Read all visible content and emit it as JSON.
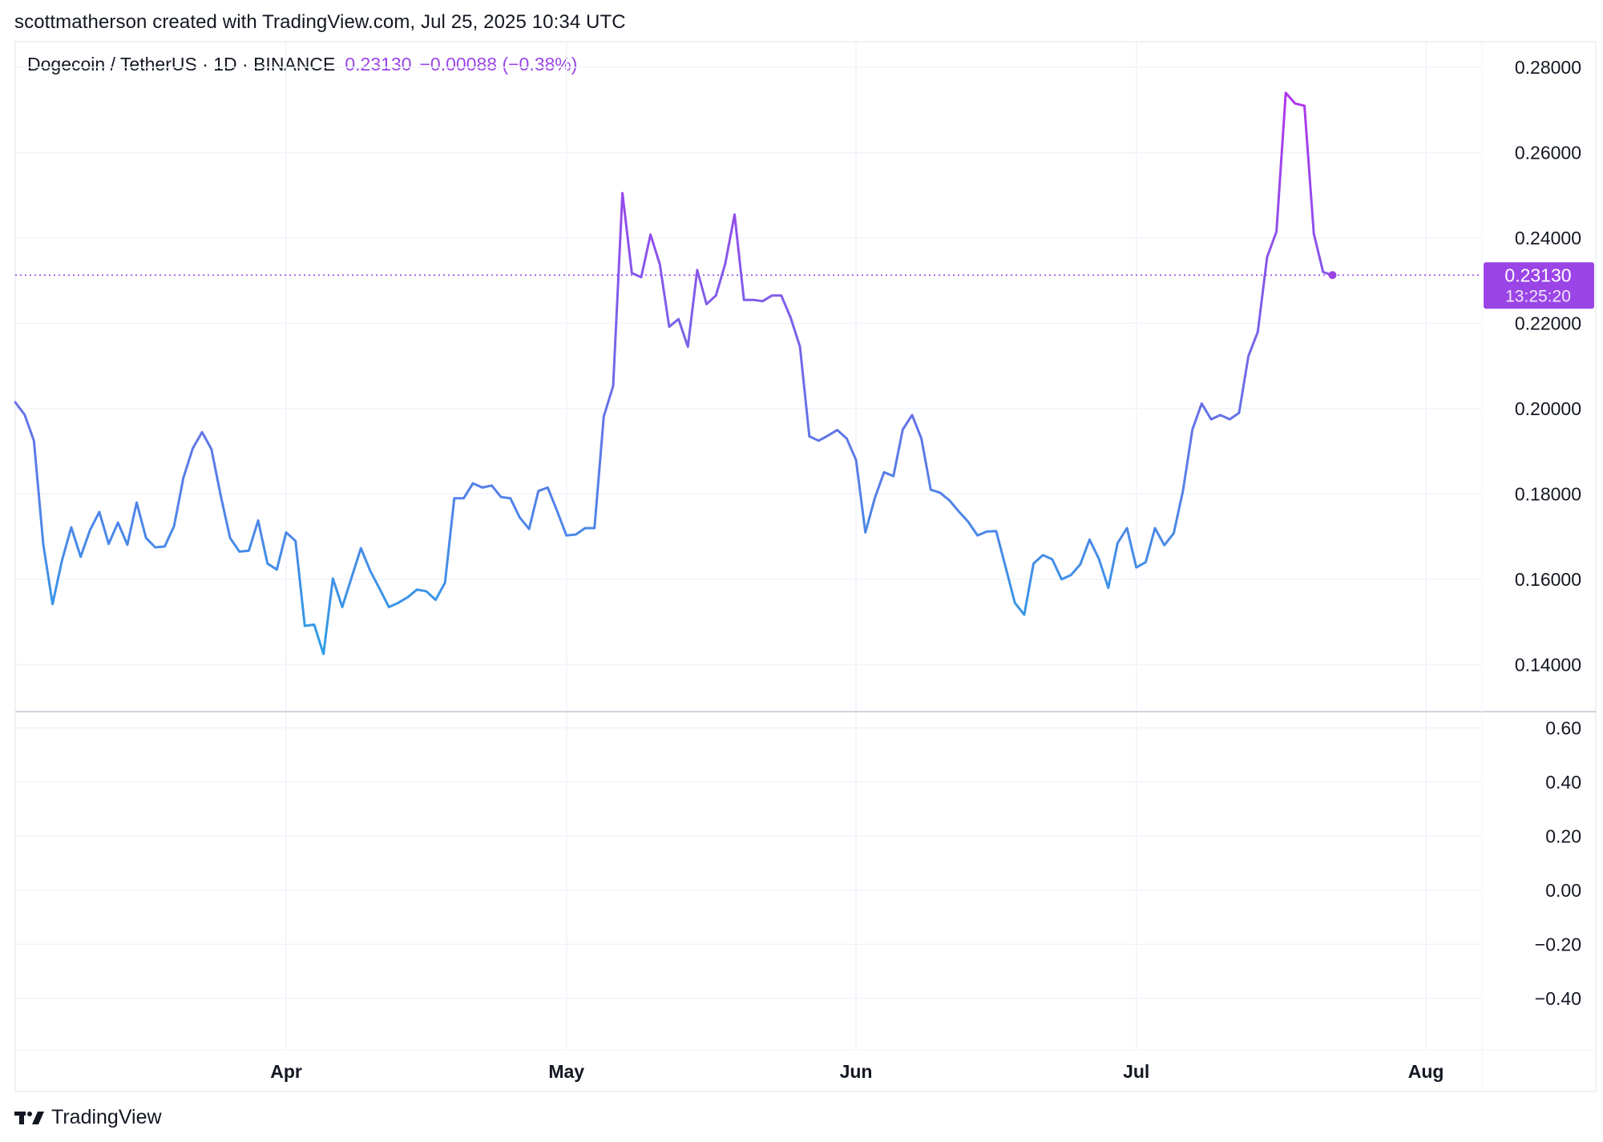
{
  "attribution": "scottmatherson created with TradingView.com, Jul 25, 2025 10:34 UTC",
  "legend": {
    "symbol": "Dogecoin / TetherUS · 1D · BINANCE",
    "price": "0.23130",
    "change": "−0.00088 (−0.38%)"
  },
  "brand": "TradingView",
  "colors": {
    "line_start": "#2e9ee6",
    "line_end": "#b036ec",
    "badge": "#9b45e6",
    "grid": "#f0f3fa",
    "text": "#131722"
  },
  "chart_data": [
    {
      "type": "line",
      "title": "Dogecoin / TetherUS · 1D · BINANCE",
      "x_range": [
        "Mar 3",
        "Aug 7"
      ],
      "xticks": [
        "Apr",
        "May",
        "Jun",
        "Jul",
        "Aug"
      ],
      "ylim": [
        0.129,
        0.286
      ],
      "yticks": [
        "0.28000",
        "0.26000",
        "0.24000",
        "0.22000",
        "0.20000",
        "0.18000",
        "0.16000",
        "0.14000"
      ],
      "last_value_label": "0.23130",
      "countdown_label": "13:25:20",
      "series": [
        {
          "name": "DOGEUSDT close",
          "values": [
            0.2015,
            0.1986,
            0.1925,
            0.1682,
            0.1542,
            0.1644,
            0.1722,
            0.1653,
            0.1715,
            0.1758,
            0.1683,
            0.1733,
            0.1681,
            0.178,
            0.1697,
            0.1675,
            0.1677,
            0.1725,
            0.1838,
            0.1907,
            0.1945,
            0.1905,
            0.1796,
            0.1697,
            0.1665,
            0.1667,
            0.1738,
            0.1637,
            0.1623,
            0.171,
            0.169,
            0.1491,
            0.1494,
            0.1425,
            0.1602,
            0.1535,
            0.1604,
            0.1673,
            0.162,
            0.1578,
            0.1535,
            0.1545,
            0.1558,
            0.1576,
            0.1572,
            0.1552,
            0.1592,
            0.179,
            0.179,
            0.1825,
            0.1815,
            0.182,
            0.1793,
            0.179,
            0.1745,
            0.1718,
            0.1807,
            0.1815,
            0.176,
            0.1703,
            0.1705,
            0.172,
            0.172,
            0.1982,
            0.2053,
            0.2505,
            0.2318,
            0.2308,
            0.2408,
            0.2338,
            0.2192,
            0.221,
            0.2145,
            0.2325,
            0.2245,
            0.2265,
            0.234,
            0.2455,
            0.2255,
            0.2255,
            0.2252,
            0.2265,
            0.2265,
            0.2213,
            0.2145,
            0.1935,
            0.1925,
            0.1937,
            0.195,
            0.193,
            0.188,
            0.171,
            0.179,
            0.1851,
            0.1842,
            0.1951,
            0.1985,
            0.193,
            0.181,
            0.1803,
            0.1785,
            0.1759,
            0.1735,
            0.1703,
            0.1712,
            0.1713,
            0.163,
            0.1545,
            0.1517,
            0.1637,
            0.1657,
            0.1647,
            0.16,
            0.161,
            0.1635,
            0.1693,
            0.1648,
            0.158,
            0.1685,
            0.172,
            0.1628,
            0.164,
            0.172,
            0.168,
            0.1708,
            0.1808,
            0.1951,
            0.2012,
            0.1975,
            0.1985,
            0.1975,
            0.199,
            0.2123,
            0.218,
            0.2355,
            0.2415,
            0.274,
            0.2715,
            0.271,
            0.241,
            0.232,
            0.2313
          ]
        }
      ]
    },
    {
      "type": "line",
      "title": "",
      "ylim": [
        -0.59,
        0.66
      ],
      "yticks": [
        "0.60",
        "0.40",
        "0.20",
        "0.00",
        "−0.20",
        "−0.40"
      ],
      "series": []
    }
  ]
}
